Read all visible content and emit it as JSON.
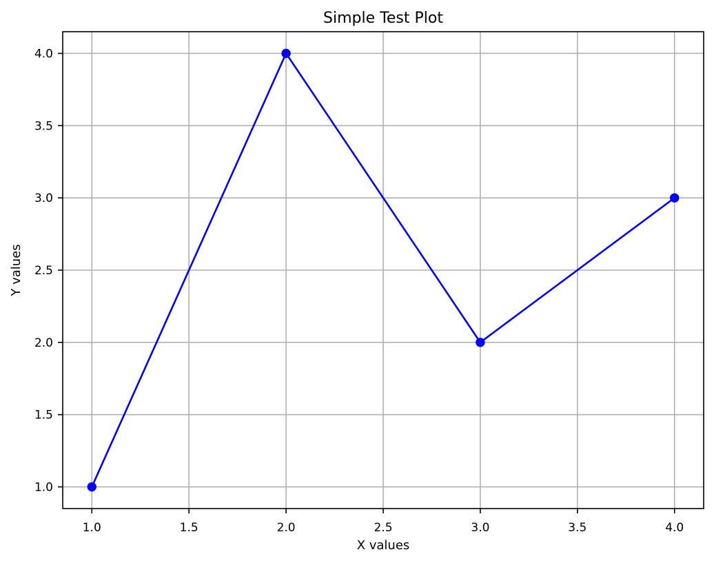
{
  "chart_data": {
    "type": "line",
    "title": "Simple Test Plot",
    "xlabel": "X values",
    "ylabel": "Y values",
    "x": [
      1,
      2,
      3,
      4
    ],
    "series": [
      {
        "values": [
          1,
          4,
          2,
          3
        ],
        "color": "#0000ff",
        "marker": "circle"
      }
    ],
    "xlim": [
      0.85,
      4.15
    ],
    "ylim": [
      0.85,
      4.15
    ],
    "xticks": [
      1.0,
      1.5,
      2.0,
      2.5,
      3.0,
      3.5,
      4.0
    ],
    "yticks": [
      1.0,
      1.5,
      2.0,
      2.5,
      3.0,
      3.5,
      4.0
    ],
    "xtick_labels": [
      "1.0",
      "1.5",
      "2.0",
      "2.5",
      "3.0",
      "3.5",
      "4.0"
    ],
    "ytick_labels": [
      "1.0",
      "1.5",
      "2.0",
      "2.5",
      "3.0",
      "3.5",
      "4.0"
    ],
    "grid": true,
    "grid_color": "#b0b0b0",
    "legend": false
  }
}
